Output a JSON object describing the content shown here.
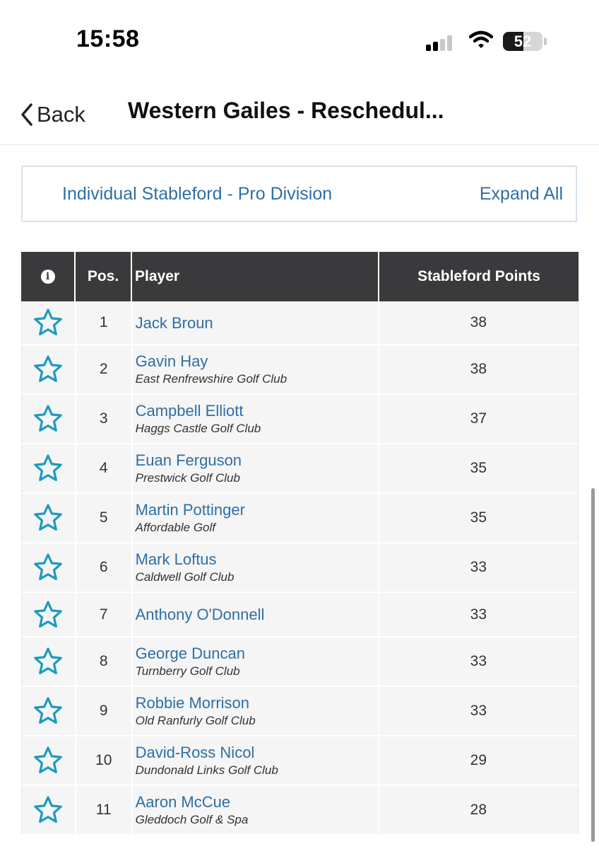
{
  "status_bar": {
    "time": "15:58",
    "battery_level": "52",
    "battery_fraction": 0.52
  },
  "nav": {
    "back_label": "Back",
    "title": "Western Gailes - Reschedul..."
  },
  "division": {
    "label": "Individual Stableford - Pro Division",
    "expand_label": "Expand All"
  },
  "table": {
    "headers": {
      "info": "i",
      "pos": "Pos.",
      "player": "Player",
      "points": "Stableford Points"
    },
    "rows": [
      {
        "pos": "1",
        "name": "Jack Broun",
        "club": "",
        "points": "38"
      },
      {
        "pos": "2",
        "name": "Gavin Hay",
        "club": "East Renfrewshire Golf Club",
        "points": "38"
      },
      {
        "pos": "3",
        "name": "Campbell Elliott",
        "club": "Haggs Castle Golf Club",
        "points": "37"
      },
      {
        "pos": "4",
        "name": "Euan Ferguson",
        "club": "Prestwick Golf Club",
        "points": "35"
      },
      {
        "pos": "5",
        "name": "Martin Pottinger",
        "club": "Affordable Golf",
        "points": "35"
      },
      {
        "pos": "6",
        "name": "Mark Loftus",
        "club": "Caldwell Golf Club",
        "points": "33"
      },
      {
        "pos": "7",
        "name": "Anthony O'Donnell",
        "club": "",
        "points": "33"
      },
      {
        "pos": "8",
        "name": "George Duncan",
        "club": "Turnberry Golf Club",
        "points": "33"
      },
      {
        "pos": "9",
        "name": "Robbie Morrison",
        "club": "Old Ranfurly Golf Club",
        "points": "33"
      },
      {
        "pos": "10",
        "name": "David-Ross Nicol",
        "club": "Dundonald Links Golf Club",
        "points": "29"
      },
      {
        "pos": "11",
        "name": "Aaron McCue",
        "club": "Gleddoch Golf & Spa",
        "points": "28"
      }
    ]
  },
  "colors": {
    "link": "#2f6ea5",
    "header_bg": "#3a3a3c",
    "star": "#1a9bc0"
  },
  "icons": {
    "back": "chevron-left-icon",
    "info": "info-icon",
    "favorite": "star-outline-icon"
  }
}
